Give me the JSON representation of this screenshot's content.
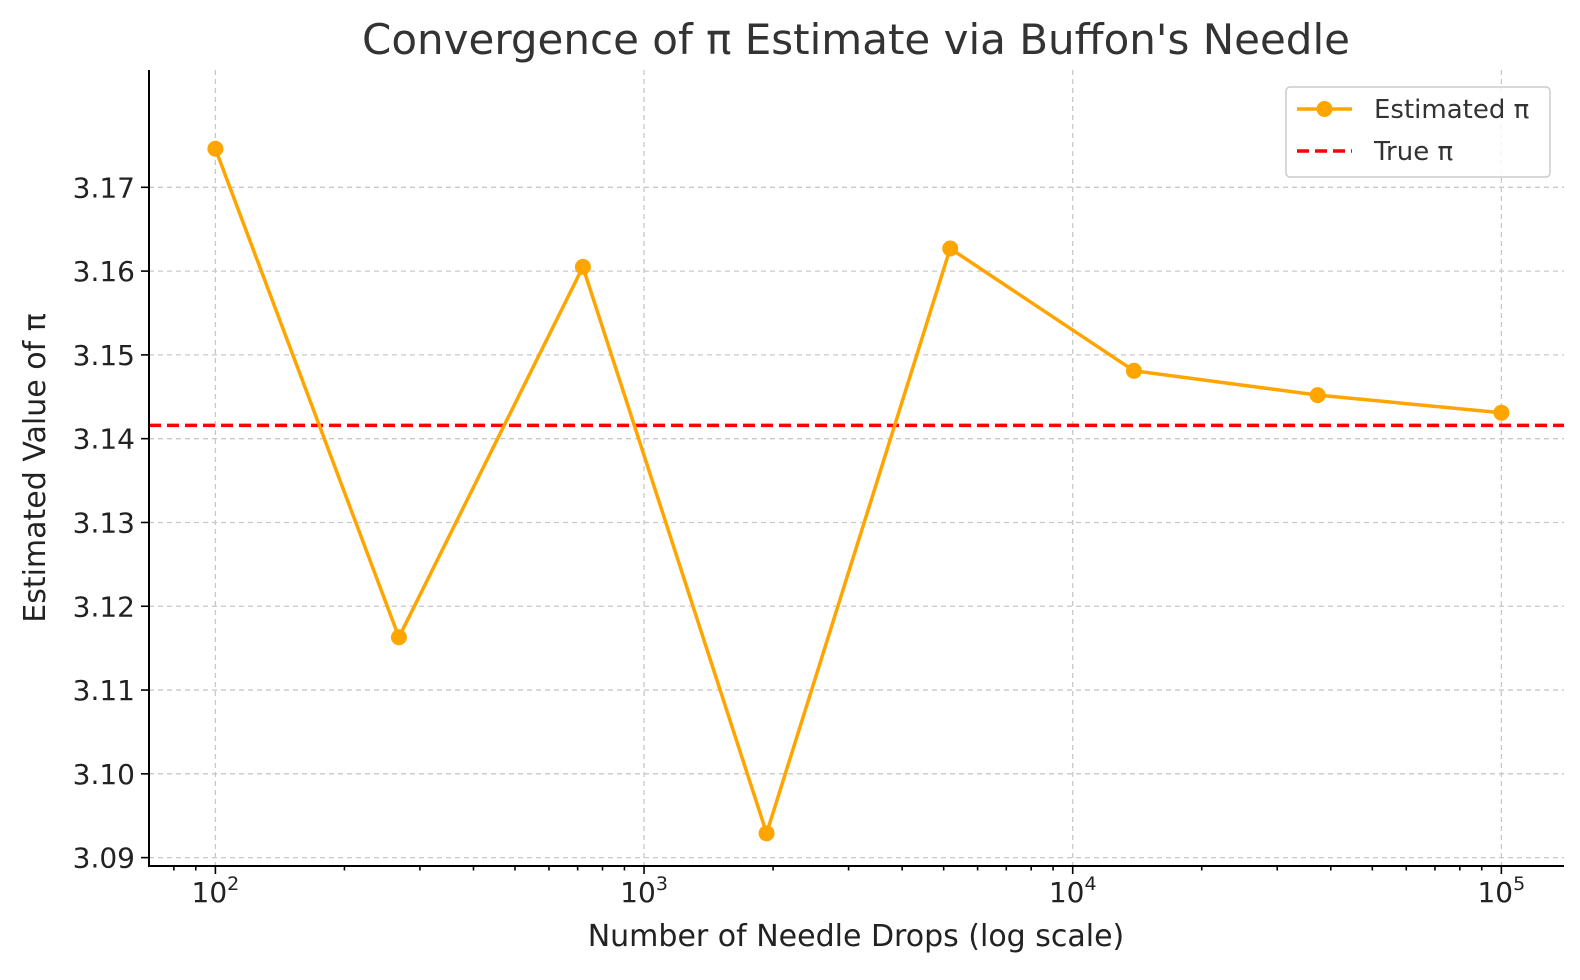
{
  "chart_data": {
    "type": "line",
    "title": "Convergence of π Estimate via Buffon's Needle",
    "xlabel": "Number of Needle Drops (log scale)",
    "ylabel": "Estimated Value of π",
    "xscale": "log",
    "xlim": [
      70,
      140000
    ],
    "ylim": [
      3.089,
      3.184
    ],
    "x_ticks": [
      {
        "value": 100,
        "base": "10",
        "exp": "2"
      },
      {
        "value": 1000,
        "base": "10",
        "exp": "3"
      },
      {
        "value": 10000,
        "base": "10",
        "exp": "4"
      },
      {
        "value": 100000,
        "base": "10",
        "exp": "5"
      }
    ],
    "y_ticks": [
      "3.09",
      "3.10",
      "3.11",
      "3.12",
      "3.13",
      "3.14",
      "3.15",
      "3.16",
      "3.17"
    ],
    "grid": true,
    "legend_position": "top-right",
    "series": [
      {
        "name": "Estimated π",
        "color": "#FFA500",
        "style": "line-marker",
        "x": [
          100,
          268,
          720,
          1931,
          5179,
          13895,
          37276,
          100000
        ],
        "y": [
          3.1746,
          3.1163,
          3.1605,
          3.0929,
          3.1627,
          3.1481,
          3.1452,
          3.1431
        ]
      },
      {
        "name": "True π",
        "color": "#FF0000",
        "style": "dashed",
        "constant_y": 3.14159
      }
    ]
  }
}
